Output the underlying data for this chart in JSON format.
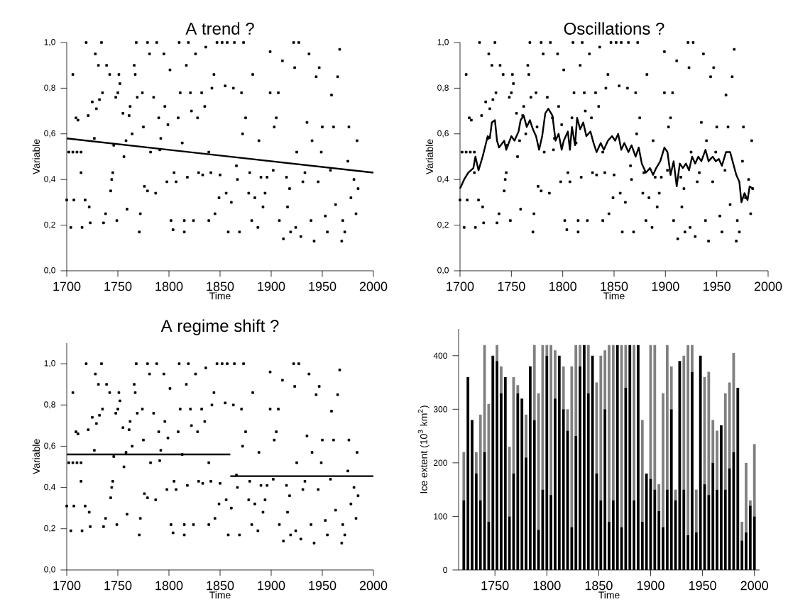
{
  "chart_data": [
    {
      "type": "scatter",
      "title": "A trend ?",
      "xlabel": "Time",
      "ylabel": "Variable",
      "marker": "square",
      "xlim": [
        1700,
        2000
      ],
      "ylim": [
        0,
        1.0
      ],
      "xticks": [
        1700,
        1750,
        1800,
        1850,
        1900,
        1950,
        2000
      ],
      "yticks": [
        {
          "value": 0,
          "label": "0,0"
        },
        {
          "value": 0.2,
          "label": "0,2"
        },
        {
          "value": 0.4,
          "label": "0,4"
        },
        {
          "value": 0.6,
          "label": "0,6"
        },
        {
          "value": 0.8,
          "label": "0,8"
        },
        {
          "value": 1.0,
          "label": "1,0"
        }
      ],
      "series": [
        {
          "type": "scatter",
          "color": "#000000",
          "x": [
            1700,
            1704,
            1706,
            1707,
            1709,
            1711,
            1702,
            1706,
            1710,
            1714,
            1714,
            1715,
            1718,
            1719,
            1721,
            1722,
            1723,
            1725,
            1727,
            1728,
            1729,
            1731,
            1732,
            1734,
            1735,
            1736,
            1738,
            1739,
            1742,
            1743,
            1744,
            1745,
            1746,
            1749,
            1748,
            1750,
            1751,
            1752,
            1755,
            1756,
            1758,
            1759,
            1761,
            1762,
            1764,
            1766,
            1767,
            1768,
            1769,
            1771,
            1772,
            1774,
            1775,
            1776,
            1779,
            1779,
            1781,
            1782,
            1785,
            1787,
            1788,
            1790,
            1791,
            1792,
            1795,
            1796,
            1798,
            1799,
            1801,
            1802,
            1804,
            1805,
            1807,
            1809,
            1810,
            1811,
            1813,
            1815,
            1815,
            1817,
            1818,
            1819,
            1821,
            1822,
            1824,
            1826,
            1828,
            1829,
            1832,
            1833,
            1835,
            1836,
            1839,
            1839,
            1841,
            1842,
            1844,
            1845,
            1847,
            1849,
            1850,
            1852,
            1855,
            1856,
            1857,
            1858,
            1861,
            1863,
            1864,
            1866,
            1867,
            1869,
            1871,
            1872,
            1873,
            1875,
            1878,
            1879,
            1881,
            1882,
            1884,
            1887,
            1888,
            1890,
            1892,
            1894,
            1896,
            1899,
            1899,
            1902,
            1903,
            1905,
            1907,
            1908,
            1911,
            1912,
            1915,
            1916,
            1918,
            1919,
            1922,
            1923,
            1924,
            1925,
            1927,
            1929,
            1931,
            1933,
            1935,
            1937,
            1939,
            1940,
            1942,
            1944,
            1946,
            1947,
            1949,
            1950,
            1953,
            1955,
            1958,
            1959,
            1961,
            1963,
            1965,
            1967,
            1969,
            1970,
            1972,
            1975,
            1976,
            1978,
            1981,
            1983,
            1984,
            1985
          ],
          "values": [
            0.31,
            0.19,
            0.86,
            0.31,
            0.67,
            0.66,
            0.52,
            0.52,
            0.52,
            0.52,
            0.43,
            0.19,
            0.31,
            1.0,
            0.68,
            0.28,
            0.21,
            0.74,
            0.58,
            0.95,
            0.71,
            0.9,
            0.75,
            1.0,
            0.78,
            0.21,
            0.25,
            0.9,
            0.86,
            0.35,
            0.4,
            0.43,
            0.55,
            0.22,
            0.76,
            0.78,
            0.86,
            0.82,
            0.69,
            0.5,
            0.57,
            0.27,
            0.68,
            0.72,
            0.6,
            0.9,
            0.86,
            1.0,
            0.76,
            0.17,
            0.25,
            0.78,
            0.63,
            0.37,
            0.35,
            1.0,
            0.95,
            0.52,
            0.76,
            0.34,
            1.0,
            0.67,
            0.53,
            0.58,
            0.95,
            0.72,
            0.39,
            0.64,
            0.88,
            0.22,
            0.18,
            0.43,
            0.39,
            0.67,
            1.0,
            0.78,
            0.56,
            0.22,
            0.17,
            0.9,
            0.41,
            1.0,
            0.78,
            0.7,
            0.22,
            0.95,
            0.67,
            0.43,
            0.78,
            0.42,
            0.72,
            0.98,
            0.22,
            0.52,
            0.43,
            0.8,
            0.86,
            0.25,
            1.0,
            0.32,
            0.42,
            1.0,
            0.81,
            0.34,
            1.0,
            0.17,
            0.3,
            0.8,
            1.0,
            0.46,
            0.4,
            0.17,
            0.78,
            0.6,
            1.0,
            0.67,
            0.34,
            0.43,
            0.22,
            0.86,
            0.32,
            0.19,
            0.57,
            0.41,
            0.28,
            0.34,
            0.41,
            0.96,
            0.78,
            0.44,
            0.63,
            0.67,
            0.78,
            0.22,
            0.92,
            0.14,
            0.41,
            0.28,
            0.36,
            0.17,
            1.0,
            0.89,
            0.19,
            0.52,
            1.0,
            0.15,
            0.39,
            0.43,
            0.65,
            0.95,
            0.22,
            0.57,
            0.13,
            0.85,
            0.39,
            0.89,
            0.52,
            0.63,
            0.24,
            0.17,
            0.44,
            0.77,
            0.63,
            0.29,
            0.85,
            0.97,
            0.13,
            0.22,
            0.17,
            0.48,
            0.63,
            0.32,
            0.4,
            0.25,
            0.57,
            0.36
          ]
        },
        {
          "type": "line",
          "marker": "none",
          "color": "#000000",
          "x": [
            1700,
            2000
          ],
          "values": [
            0.58,
            0.43
          ]
        }
      ]
    },
    {
      "type": "scatter",
      "title": "Oscillations ?",
      "xlabel": "Time",
      "ylabel": "Variable",
      "marker": "square",
      "xlim": [
        1700,
        2000
      ],
      "ylim": [
        0,
        1.0
      ],
      "xticks": [
        1700,
        1750,
        1800,
        1850,
        1900,
        1950,
        2000
      ],
      "yticks": [
        {
          "value": 0,
          "label": "0,0"
        },
        {
          "value": 0.2,
          "label": "0,2"
        },
        {
          "value": 0.4,
          "label": "0,4"
        },
        {
          "value": 0.6,
          "label": "0,6"
        },
        {
          "value": 0.8,
          "label": "0,8"
        },
        {
          "value": 1.0,
          "label": "1,0"
        }
      ],
      "series": [
        {
          "type": "scatter",
          "color": "#000000",
          "x": [
            1700,
            1704,
            1706,
            1707,
            1709,
            1711,
            1702,
            1706,
            1710,
            1714,
            1714,
            1715,
            1718,
            1719,
            1721,
            1722,
            1723,
            1725,
            1727,
            1728,
            1729,
            1731,
            1732,
            1734,
            1735,
            1736,
            1738,
            1739,
            1742,
            1743,
            1744,
            1745,
            1746,
            1749,
            1748,
            1750,
            1751,
            1752,
            1755,
            1756,
            1758,
            1759,
            1761,
            1762,
            1764,
            1766,
            1767,
            1768,
            1769,
            1771,
            1772,
            1774,
            1775,
            1776,
            1779,
            1779,
            1781,
            1782,
            1785,
            1787,
            1788,
            1790,
            1791,
            1792,
            1795,
            1796,
            1798,
            1799,
            1801,
            1802,
            1804,
            1805,
            1807,
            1809,
            1810,
            1811,
            1813,
            1815,
            1815,
            1817,
            1818,
            1819,
            1821,
            1822,
            1824,
            1826,
            1828,
            1829,
            1832,
            1833,
            1835,
            1836,
            1839,
            1839,
            1841,
            1842,
            1844,
            1845,
            1847,
            1849,
            1850,
            1852,
            1855,
            1856,
            1857,
            1858,
            1861,
            1863,
            1864,
            1866,
            1867,
            1869,
            1871,
            1872,
            1873,
            1875,
            1878,
            1879,
            1881,
            1882,
            1884,
            1887,
            1888,
            1890,
            1892,
            1894,
            1896,
            1899,
            1899,
            1902,
            1903,
            1905,
            1907,
            1908,
            1911,
            1912,
            1915,
            1916,
            1918,
            1919,
            1922,
            1923,
            1924,
            1925,
            1927,
            1929,
            1931,
            1933,
            1935,
            1937,
            1939,
            1940,
            1942,
            1944,
            1946,
            1947,
            1949,
            1950,
            1953,
            1955,
            1958,
            1959,
            1961,
            1963,
            1965,
            1967,
            1969,
            1970,
            1972,
            1975,
            1976,
            1978,
            1981,
            1983,
            1984,
            1985
          ],
          "values": [
            0.31,
            0.19,
            0.86,
            0.31,
            0.67,
            0.66,
            0.52,
            0.52,
            0.52,
            0.52,
            0.43,
            0.19,
            0.31,
            1.0,
            0.68,
            0.28,
            0.21,
            0.74,
            0.58,
            0.95,
            0.71,
            0.9,
            0.75,
            1.0,
            0.78,
            0.21,
            0.25,
            0.9,
            0.86,
            0.35,
            0.4,
            0.43,
            0.55,
            0.22,
            0.76,
            0.78,
            0.86,
            0.82,
            0.69,
            0.5,
            0.57,
            0.27,
            0.68,
            0.72,
            0.6,
            0.9,
            0.86,
            1.0,
            0.76,
            0.17,
            0.25,
            0.78,
            0.63,
            0.37,
            0.35,
            1.0,
            0.95,
            0.52,
            0.76,
            0.34,
            1.0,
            0.67,
            0.53,
            0.58,
            0.95,
            0.72,
            0.39,
            0.64,
            0.88,
            0.22,
            0.18,
            0.43,
            0.39,
            0.67,
            1.0,
            0.78,
            0.56,
            0.22,
            0.17,
            0.9,
            0.41,
            1.0,
            0.78,
            0.7,
            0.22,
            0.95,
            0.67,
            0.43,
            0.78,
            0.42,
            0.72,
            0.98,
            0.22,
            0.52,
            0.43,
            0.8,
            0.86,
            0.25,
            1.0,
            0.32,
            0.42,
            1.0,
            0.81,
            0.34,
            1.0,
            0.17,
            0.3,
            0.8,
            1.0,
            0.46,
            0.4,
            0.17,
            0.78,
            0.6,
            1.0,
            0.67,
            0.34,
            0.43,
            0.22,
            0.86,
            0.32,
            0.19,
            0.57,
            0.41,
            0.28,
            0.34,
            0.41,
            0.96,
            0.78,
            0.44,
            0.63,
            0.67,
            0.78,
            0.22,
            0.92,
            0.14,
            0.41,
            0.28,
            0.36,
            0.17,
            1.0,
            0.89,
            0.19,
            0.52,
            1.0,
            0.15,
            0.39,
            0.43,
            0.65,
            0.95,
            0.22,
            0.57,
            0.13,
            0.85,
            0.39,
            0.89,
            0.52,
            0.63,
            0.24,
            0.17,
            0.44,
            0.77,
            0.63,
            0.29,
            0.85,
            0.97,
            0.13,
            0.22,
            0.17,
            0.48,
            0.63,
            0.32,
            0.4,
            0.25,
            0.57,
            0.36
          ]
        },
        {
          "type": "line",
          "marker": "none",
          "color": "#000000",
          "x": [
            1700,
            1704,
            1708,
            1713,
            1715,
            1718,
            1722,
            1727,
            1729,
            1731,
            1734,
            1736,
            1738,
            1743,
            1745,
            1750,
            1753,
            1757,
            1759,
            1762,
            1765,
            1768,
            1771,
            1774,
            1777,
            1780,
            1783,
            1786,
            1790,
            1793,
            1796,
            1799,
            1801,
            1805,
            1807,
            1809,
            1812,
            1814,
            1817,
            1820,
            1823,
            1827,
            1830,
            1833,
            1837,
            1840,
            1844,
            1848,
            1851,
            1854,
            1857,
            1860,
            1864,
            1867,
            1871,
            1874,
            1877,
            1881,
            1885,
            1888,
            1891,
            1895,
            1899,
            1902,
            1905,
            1908,
            1911,
            1914,
            1917,
            1920,
            1923,
            1926,
            1929,
            1932,
            1935,
            1939,
            1942,
            1946,
            1949,
            1952,
            1955,
            1959,
            1963,
            1966,
            1969,
            1972,
            1974,
            1977,
            1980,
            1982,
            1985
          ],
          "values": [
            0.36,
            0.4,
            0.43,
            0.45,
            0.5,
            0.44,
            0.5,
            0.59,
            0.58,
            0.65,
            0.66,
            0.57,
            0.54,
            0.57,
            0.53,
            0.59,
            0.57,
            0.61,
            0.66,
            0.68,
            0.63,
            0.66,
            0.62,
            0.59,
            0.53,
            0.59,
            0.69,
            0.71,
            0.68,
            0.57,
            0.6,
            0.53,
            0.57,
            0.61,
            0.53,
            0.63,
            0.55,
            0.67,
            0.62,
            0.65,
            0.59,
            0.61,
            0.56,
            0.52,
            0.56,
            0.53,
            0.57,
            0.59,
            0.57,
            0.6,
            0.53,
            0.56,
            0.52,
            0.55,
            0.5,
            0.54,
            0.47,
            0.43,
            0.45,
            0.42,
            0.45,
            0.48,
            0.54,
            0.52,
            0.42,
            0.48,
            0.37,
            0.47,
            0.45,
            0.47,
            0.44,
            0.5,
            0.47,
            0.5,
            0.48,
            0.53,
            0.48,
            0.5,
            0.48,
            0.49,
            0.46,
            0.52,
            0.52,
            0.47,
            0.42,
            0.39,
            0.3,
            0.34,
            0.31,
            0.37,
            0.36
          ]
        }
      ]
    },
    {
      "type": "scatter",
      "title": "A regime shift ?",
      "xlabel": "Time",
      "ylabel": "Variable",
      "marker": "square",
      "xlim": [
        1700,
        2000
      ],
      "ylim": [
        0,
        1.1
      ],
      "xticks": [
        1700,
        1750,
        1800,
        1850,
        1900,
        1950,
        2000
      ],
      "yticks": [
        {
          "value": 0,
          "label": "0,0"
        },
        {
          "value": 0.2,
          "label": "0,2"
        },
        {
          "value": 0.4,
          "label": "0,4"
        },
        {
          "value": 0.6,
          "label": "0,6"
        },
        {
          "value": 0.8,
          "label": "0,8"
        },
        {
          "value": 1.0,
          "label": "1,0"
        }
      ],
      "series": [
        {
          "type": "scatter",
          "color": "#000000",
          "x": [
            1700,
            1704,
            1706,
            1707,
            1709,
            1711,
            1702,
            1706,
            1710,
            1714,
            1714,
            1715,
            1718,
            1719,
            1721,
            1722,
            1723,
            1725,
            1727,
            1728,
            1729,
            1731,
            1732,
            1734,
            1735,
            1736,
            1738,
            1739,
            1742,
            1743,
            1744,
            1745,
            1746,
            1749,
            1748,
            1750,
            1751,
            1752,
            1755,
            1756,
            1758,
            1759,
            1761,
            1762,
            1764,
            1766,
            1767,
            1768,
            1769,
            1771,
            1772,
            1774,
            1775,
            1776,
            1779,
            1779,
            1781,
            1782,
            1785,
            1787,
            1788,
            1790,
            1791,
            1792,
            1795,
            1796,
            1798,
            1799,
            1801,
            1802,
            1804,
            1805,
            1807,
            1809,
            1810,
            1811,
            1813,
            1815,
            1815,
            1817,
            1818,
            1819,
            1821,
            1822,
            1824,
            1826,
            1828,
            1829,
            1832,
            1833,
            1835,
            1836,
            1839,
            1839,
            1841,
            1842,
            1844,
            1845,
            1847,
            1849,
            1850,
            1852,
            1855,
            1856,
            1857,
            1858,
            1861,
            1863,
            1864,
            1866,
            1867,
            1869,
            1871,
            1872,
            1873,
            1875,
            1878,
            1879,
            1881,
            1882,
            1884,
            1887,
            1888,
            1890,
            1892,
            1894,
            1896,
            1899,
            1899,
            1902,
            1903,
            1905,
            1907,
            1908,
            1911,
            1912,
            1915,
            1916,
            1918,
            1919,
            1922,
            1923,
            1924,
            1925,
            1927,
            1929,
            1931,
            1933,
            1935,
            1937,
            1939,
            1940,
            1942,
            1944,
            1946,
            1947,
            1949,
            1950,
            1953,
            1955,
            1958,
            1959,
            1961,
            1963,
            1965,
            1967,
            1969,
            1970,
            1972,
            1975,
            1976,
            1978,
            1981,
            1983,
            1984,
            1985
          ],
          "values": [
            0.31,
            0.19,
            0.86,
            0.31,
            0.67,
            0.66,
            0.52,
            0.52,
            0.52,
            0.52,
            0.43,
            0.19,
            0.31,
            1.0,
            0.68,
            0.28,
            0.21,
            0.74,
            0.58,
            0.95,
            0.71,
            0.9,
            0.75,
            1.0,
            0.78,
            0.21,
            0.25,
            0.9,
            0.86,
            0.35,
            0.4,
            0.43,
            0.55,
            0.22,
            0.76,
            0.78,
            0.86,
            0.82,
            0.69,
            0.5,
            0.57,
            0.27,
            0.68,
            0.72,
            0.6,
            0.9,
            0.86,
            1.0,
            0.76,
            0.17,
            0.25,
            0.78,
            0.63,
            0.37,
            0.35,
            1.0,
            0.95,
            0.52,
            0.76,
            0.34,
            1.0,
            0.67,
            0.53,
            0.58,
            0.95,
            0.72,
            0.39,
            0.64,
            0.88,
            0.22,
            0.18,
            0.43,
            0.39,
            0.67,
            1.0,
            0.78,
            0.56,
            0.22,
            0.17,
            0.9,
            0.41,
            1.0,
            0.78,
            0.7,
            0.22,
            0.95,
            0.67,
            0.43,
            0.78,
            0.42,
            0.72,
            0.98,
            0.22,
            0.52,
            0.43,
            0.8,
            0.86,
            0.25,
            1.0,
            0.32,
            0.42,
            1.0,
            0.81,
            0.34,
            1.0,
            0.17,
            0.3,
            0.8,
            1.0,
            0.46,
            0.4,
            0.17,
            0.78,
            0.6,
            1.0,
            0.67,
            0.34,
            0.43,
            0.22,
            0.86,
            0.32,
            0.19,
            0.57,
            0.41,
            0.28,
            0.34,
            0.41,
            0.96,
            0.78,
            0.44,
            0.63,
            0.67,
            0.78,
            0.22,
            0.92,
            0.14,
            0.41,
            0.28,
            0.36,
            0.17,
            1.0,
            0.89,
            0.19,
            0.52,
            1.0,
            0.15,
            0.39,
            0.43,
            0.65,
            0.95,
            0.22,
            0.57,
            0.13,
            0.85,
            0.39,
            0.89,
            0.52,
            0.63,
            0.24,
            0.17,
            0.44,
            0.77,
            0.63,
            0.29,
            0.85,
            0.97,
            0.13,
            0.22,
            0.17,
            0.48,
            0.63,
            0.32,
            0.4,
            0.25,
            0.57,
            0.36
          ]
        },
        {
          "type": "line",
          "marker": "none",
          "color": "#000000",
          "x": [
            1700,
            1860
          ],
          "values": [
            0.56,
            0.56
          ]
        },
        {
          "type": "line",
          "marker": "none",
          "color": "#000000",
          "x": [
            1860,
            2000
          ],
          "values": [
            0.455,
            0.455
          ]
        }
      ]
    },
    {
      "type": "bar",
      "stacked": true,
      "xlabel": "Time",
      "ylabel": "Ice extent (10$^{3}$ km$^{2}$)",
      "xlim": [
        1715,
        2005
      ],
      "ylim": [
        0,
        450
      ],
      "xticks": [
        1750,
        1800,
        1850,
        1900,
        1950,
        2000
      ],
      "yticks": [
        0,
        100,
        200,
        300,
        400
      ],
      "series": [
        {
          "color": "#000000",
          "x": [
            1720,
            1724,
            1728,
            1732,
            1736,
            1740,
            1744,
            1748,
            1752,
            1756,
            1760,
            1764,
            1768,
            1772,
            1776,
            1780,
            1784,
            1788,
            1792,
            1796,
            1800,
            1804,
            1808,
            1812,
            1816,
            1820,
            1824,
            1828,
            1832,
            1836,
            1840,
            1844,
            1848,
            1852,
            1856,
            1860,
            1864,
            1868,
            1872,
            1876,
            1880,
            1884,
            1888,
            1892,
            1896,
            1900,
            1904,
            1908,
            1912,
            1916,
            1920,
            1924,
            1928,
            1932,
            1936,
            1940,
            1944,
            1948,
            1952,
            1956,
            1960,
            1964,
            1968,
            1972,
            1976,
            1980,
            1984,
            1988,
            1992,
            1996,
            2000
          ],
          "values": [
            130,
            360,
            280,
            180,
            130,
            220,
            90,
            400,
            390,
            330,
            360,
            100,
            180,
            330,
            320,
            210,
            380,
            280,
            75,
            150,
            400,
            140,
            320,
            400,
            300,
            260,
            80,
            250,
            380,
            420,
            330,
            400,
            180,
            130,
            300,
            90,
            130,
            420,
            80,
            340,
            420,
            130,
            420,
            90,
            180,
            170,
            150,
            110,
            80,
            150,
            300,
            130,
            390,
            150,
            65,
            370,
            70,
            400,
            160,
            140,
            200,
            150,
            270,
            150,
            190,
            220,
            340,
            55,
            70,
            120,
            100
          ]
        },
        {
          "color": "#808080",
          "x": [
            1720,
            1724,
            1728,
            1732,
            1736,
            1740,
            1744,
            1748,
            1752,
            1756,
            1760,
            1764,
            1768,
            1772,
            1776,
            1780,
            1784,
            1788,
            1792,
            1796,
            1800,
            1804,
            1808,
            1812,
            1816,
            1820,
            1824,
            1828,
            1832,
            1836,
            1840,
            1844,
            1848,
            1852,
            1856,
            1860,
            1864,
            1868,
            1872,
            1876,
            1880,
            1884,
            1888,
            1892,
            1896,
            1900,
            1904,
            1908,
            1912,
            1916,
            1920,
            1924,
            1928,
            1932,
            1936,
            1940,
            1944,
            1948,
            1952,
            1956,
            1960,
            1964,
            1968,
            1972,
            1976,
            1980,
            1984,
            1988,
            1992,
            1996,
            2000
          ],
          "values": [
            90,
            0,
            0,
            40,
            160,
            200,
            220,
            0,
            30,
            50,
            0,
            130,
            180,
            15,
            0,
            80,
            0,
            140,
            255,
            270,
            20,
            280,
            90,
            0,
            80,
            40,
            300,
            170,
            40,
            0,
            90,
            0,
            170,
            270,
            110,
            330,
            290,
            0,
            340,
            80,
            0,
            290,
            0,
            190,
            0,
            250,
            270,
            50,
            250,
            270,
            80,
            20,
            0,
            250,
            355,
            50,
            80,
            0,
            200,
            230,
            80,
            110,
            0,
            180,
            160,
            185,
            0,
            35,
            130,
            10,
            135
          ]
        }
      ]
    }
  ]
}
